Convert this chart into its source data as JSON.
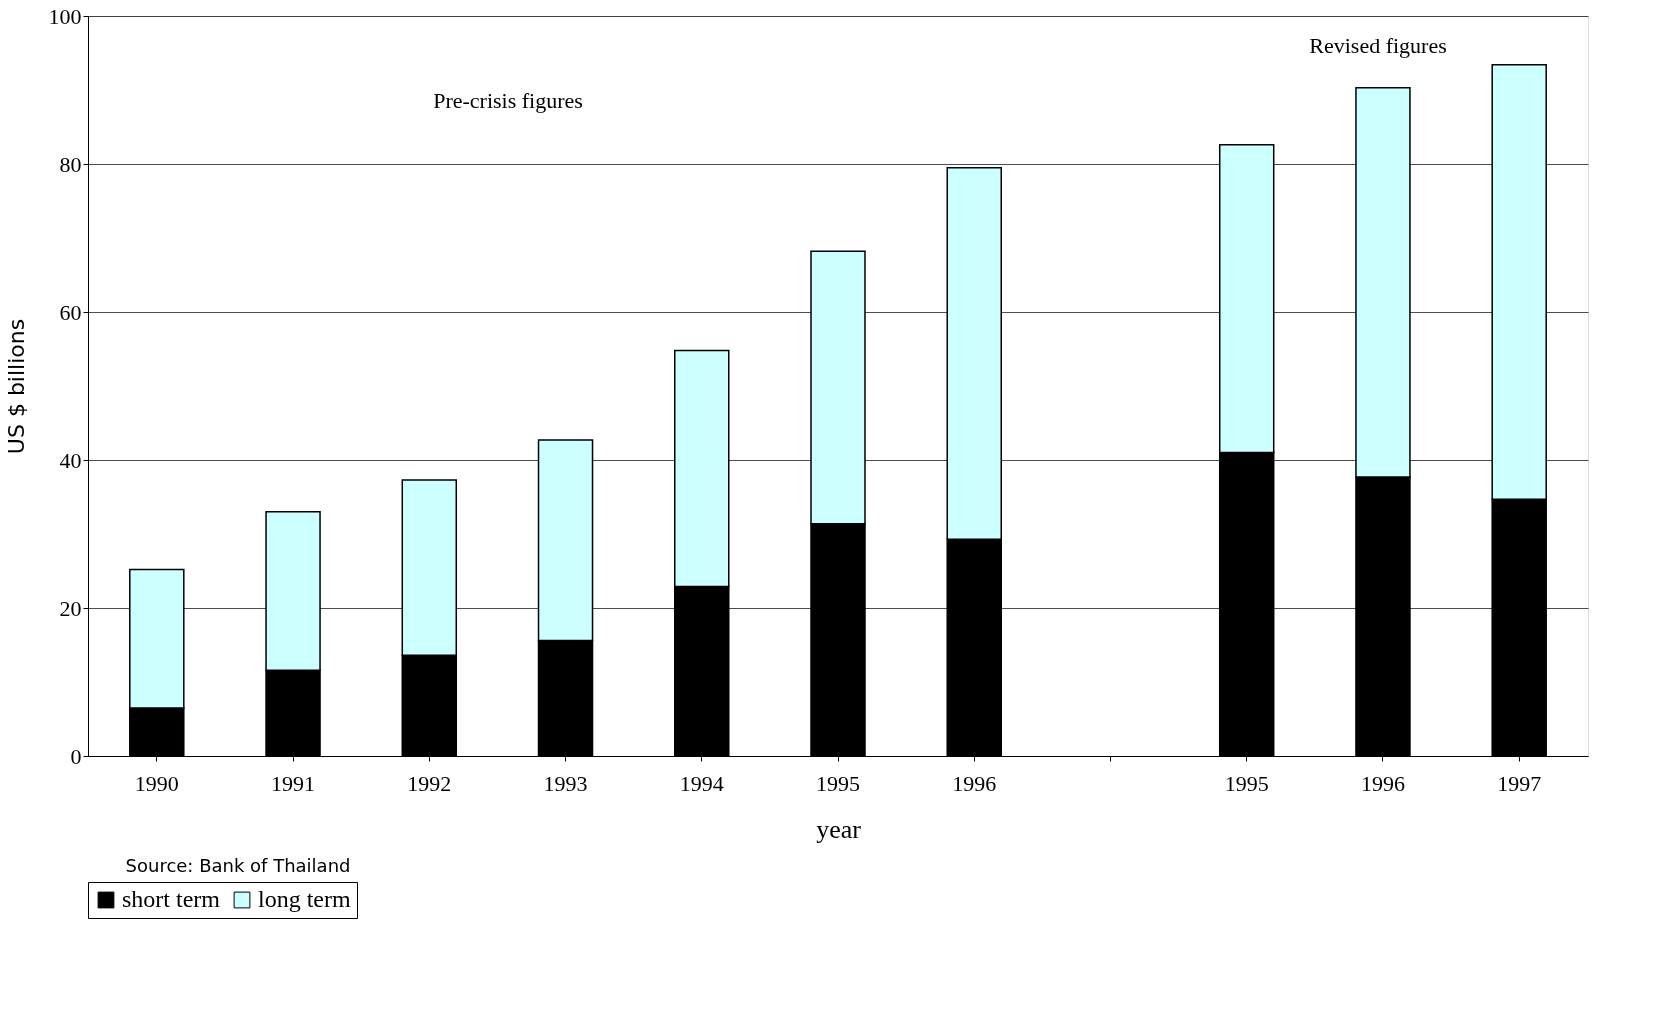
{
  "chart_data": {
    "type": "bar",
    "stacked": true,
    "categories": [
      "1990",
      "1991",
      "1992",
      "1993",
      "1994",
      "1995",
      "1996",
      null,
      "1995",
      "1996",
      "1997"
    ],
    "series": [
      {
        "name": "short term",
        "color": "#000000",
        "values": [
          6.5,
          11.6,
          13.6,
          15.6,
          22.9,
          31.4,
          29.3,
          null,
          41.0,
          37.7,
          34.7
        ]
      },
      {
        "name": "long term",
        "color": "#ccffff",
        "values": [
          18.7,
          21.4,
          23.7,
          27.1,
          31.9,
          36.8,
          50.2,
          null,
          41.6,
          52.6,
          58.7
        ]
      }
    ],
    "xlabel": "year",
    "ylabel": "US $ billions",
    "ylim": [
      0,
      100
    ],
    "yticks": [
      0,
      20,
      40,
      60,
      80,
      100
    ],
    "grid": "y",
    "legend": "bottom",
    "annotations": [
      "Pre-crisis figures",
      "Revised figures",
      "Source:  Bank of Thailand"
    ]
  }
}
